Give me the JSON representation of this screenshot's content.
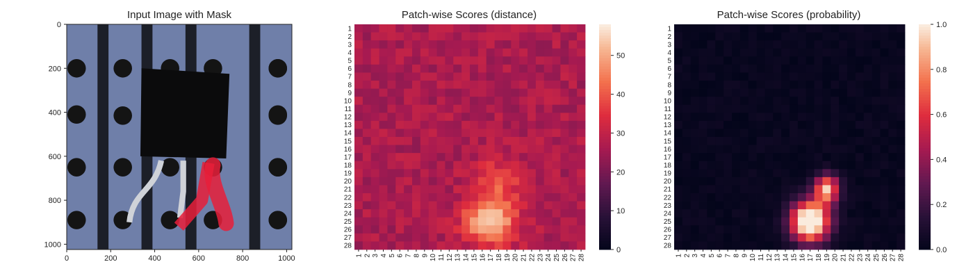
{
  "figure": {
    "panels": [
      {
        "title": "Input Image with Mask"
      },
      {
        "title": "Patch-wise Scores (distance)"
      },
      {
        "title": "Patch-wise Scores (probability)"
      }
    ]
  },
  "chart_data": [
    {
      "type": "image",
      "title": "Input Image with Mask",
      "x_ticks": [
        0,
        200,
        400,
        600,
        800,
        1000
      ],
      "y_ticks": [
        0,
        200,
        400,
        600,
        800,
        1000
      ],
      "xlim": [
        0,
        1024
      ],
      "ylim": [
        1024,
        0
      ],
      "colors": {
        "background": "#6f7fa9",
        "stripe": "#1c1f28",
        "hole": "#141414",
        "part": "#0b0b0c",
        "mask": "#e81f3a"
      }
    },
    {
      "type": "heatmap",
      "title": "Patch-wise Scores (distance)",
      "x_categories": [
        "1",
        "2",
        "3",
        "4",
        "5",
        "6",
        "7",
        "8",
        "9",
        "10",
        "11",
        "12",
        "13",
        "14",
        "15",
        "16",
        "17",
        "18",
        "19",
        "20",
        "21",
        "22",
        "23",
        "24",
        "25",
        "26",
        "27",
        "28"
      ],
      "y_categories": [
        "1",
        "2",
        "3",
        "4",
        "5",
        "6",
        "7",
        "8",
        "9",
        "10",
        "11",
        "12",
        "13",
        "14",
        "15",
        "16",
        "17",
        "18",
        "19",
        "20",
        "21",
        "22",
        "23",
        "24",
        "25",
        "26",
        "27",
        "28"
      ],
      "colorbar": {
        "min": 0,
        "max": 58,
        "ticks": [
          0,
          10,
          20,
          30,
          40,
          50
        ]
      },
      "base_value": 27,
      "hotspots": [
        {
          "cx": 17,
          "cy": 25,
          "amp": 30
        },
        {
          "cx": 18,
          "cy": 20,
          "amp": 12
        }
      ],
      "colormap": "rocket"
    },
    {
      "type": "heatmap",
      "title": "Patch-wise Scores (probability)",
      "x_categories": [
        "1",
        "2",
        "3",
        "4",
        "5",
        "6",
        "7",
        "8",
        "9",
        "10",
        "11",
        "12",
        "13",
        "14",
        "15",
        "16",
        "17",
        "18",
        "19",
        "20",
        "21",
        "22",
        "23",
        "24",
        "25",
        "26",
        "27",
        "28"
      ],
      "y_categories": [
        "1",
        "2",
        "3",
        "4",
        "5",
        "6",
        "7",
        "8",
        "9",
        "10",
        "11",
        "12",
        "13",
        "14",
        "15",
        "16",
        "17",
        "18",
        "19",
        "20",
        "21",
        "22",
        "23",
        "24",
        "25",
        "26",
        "27",
        "28"
      ],
      "colorbar": {
        "min": 0.0,
        "max": 1.0,
        "ticks": [
          "0.0",
          "0.2",
          "0.4",
          "0.6",
          "0.8",
          "1.0"
        ]
      },
      "colormap": "rocket"
    }
  ]
}
